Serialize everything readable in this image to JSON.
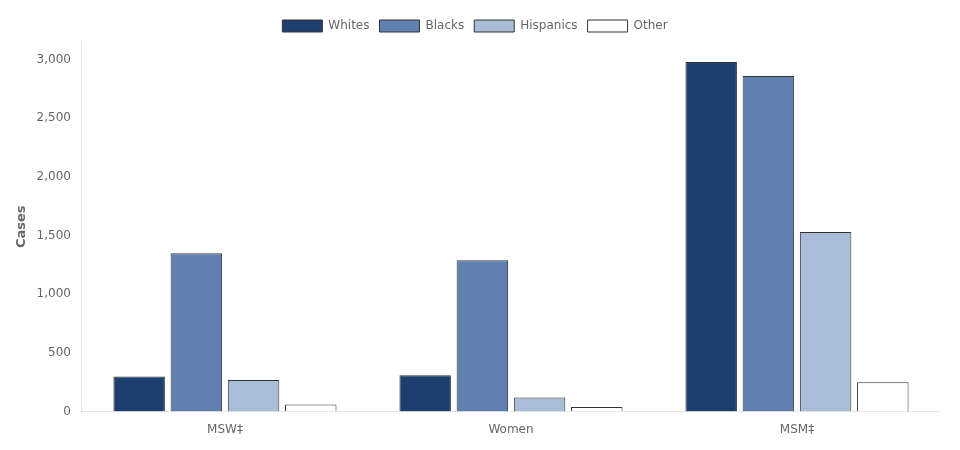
{
  "chart_data": {
    "type": "bar",
    "y_label": "Cases",
    "categories": [
      "MSW‡",
      "Women",
      "MSM‡"
    ],
    "series": [
      {
        "name": "Whites",
        "color": "#1c3f6e",
        "values": [
          300,
          310,
          2980
        ]
      },
      {
        "name": "Blacks",
        "color": "#6080b0",
        "values": [
          1350,
          1290,
          2860
        ]
      },
      {
        "name": "Hispanics",
        "color": "#aabdd8",
        "values": [
          270,
          120,
          1530
        ]
      },
      {
        "name": "Other",
        "color": "#ffffff",
        "values": [
          60,
          40,
          250
        ]
      }
    ],
    "ylim": [
      0,
      3150
    ],
    "yticks": [
      0,
      500,
      {
        "value": 1000,
        "label": "1,000"
      },
      {
        "value": 1500,
        "label": "1,500"
      },
      {
        "value": 2000,
        "label": "2,000"
      },
      {
        "value": 2500,
        "label": "2,500"
      },
      {
        "value": 3000,
        "label": "3,000"
      }
    ],
    "grid": false,
    "legend": "top"
  }
}
